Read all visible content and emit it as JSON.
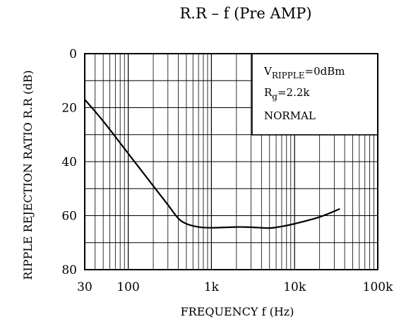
{
  "chart_data": {
    "type": "line",
    "title": "R.R – f (Pre AMP)",
    "xlabel": "FREQUENCY  f  (Hz)",
    "ylabel": "RIPPLE  REJECTION  RATIO  R.R    (dB)",
    "x_scale": "log",
    "xlim": [
      30,
      100000
    ],
    "ylim": [
      0,
      80
    ],
    "y_inverted": true,
    "grid": true,
    "x_ticks": [
      {
        "value": 30,
        "label": "30"
      },
      {
        "value": 100,
        "label": "100"
      },
      {
        "value": 1000,
        "label": "1k"
      },
      {
        "value": 10000,
        "label": "10k"
      },
      {
        "value": 100000,
        "label": "100k"
      }
    ],
    "y_ticks": [
      {
        "value": 0,
        "label": "0"
      },
      {
        "value": 20,
        "label": "20"
      },
      {
        "value": 40,
        "label": "40"
      },
      {
        "value": 60,
        "label": "60"
      },
      {
        "value": 80,
        "label": "80"
      }
    ],
    "annotations": [
      {
        "main": "V",
        "sub": "RIPPLE",
        "rest": "=0dBm"
      },
      {
        "main": "R",
        "sub": "g",
        "rest": "=2.2k"
      },
      {
        "main": "NORMAL",
        "sub": "",
        "rest": ""
      }
    ],
    "series": [
      {
        "x": [
          30,
          50,
          100,
          200,
          300,
          400,
          500,
          700,
          1000,
          2000,
          3000,
          5000,
          7000,
          10000,
          20000,
          35000
        ],
        "y": [
          17,
          25,
          37,
          49,
          56,
          61,
          63,
          64.2,
          64.5,
          64.2,
          64.3,
          64.6,
          64,
          63,
          60.5,
          57.5
        ]
      }
    ]
  }
}
